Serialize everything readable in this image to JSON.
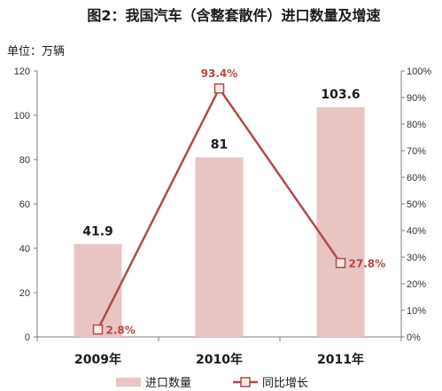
{
  "chart_data": {
    "type": "bar",
    "title": "图2：我国汽车（含整套散件）进口数量及增速",
    "unit_label": "单位：万辆",
    "categories": [
      "2009年",
      "2010年",
      "2011年"
    ],
    "series": [
      {
        "name": "进口数量",
        "type": "bar",
        "axis": "left",
        "values": [
          41.9,
          81,
          103.6
        ],
        "labels": [
          "41.9",
          "81",
          "103.6"
        ],
        "color": "#e8c4c3"
      },
      {
        "name": "同比增长",
        "type": "line",
        "axis": "right",
        "values": [
          2.8,
          93.4,
          27.8
        ],
        "labels": [
          "2.8%",
          "93.4%",
          "27.8%"
        ],
        "color": "#b24a47"
      }
    ],
    "ylim_left": [
      0,
      120
    ],
    "yticks_left": [
      "0",
      "20",
      "40",
      "60",
      "80",
      "100",
      "120"
    ],
    "ylim_right": [
      0,
      100
    ],
    "yticks_right": [
      "0%",
      "10%",
      "20%",
      "30%",
      "40%",
      "50%",
      "60%",
      "70%",
      "80%",
      "90%",
      "100%"
    ],
    "grid": false,
    "legend_position": "bottom"
  }
}
